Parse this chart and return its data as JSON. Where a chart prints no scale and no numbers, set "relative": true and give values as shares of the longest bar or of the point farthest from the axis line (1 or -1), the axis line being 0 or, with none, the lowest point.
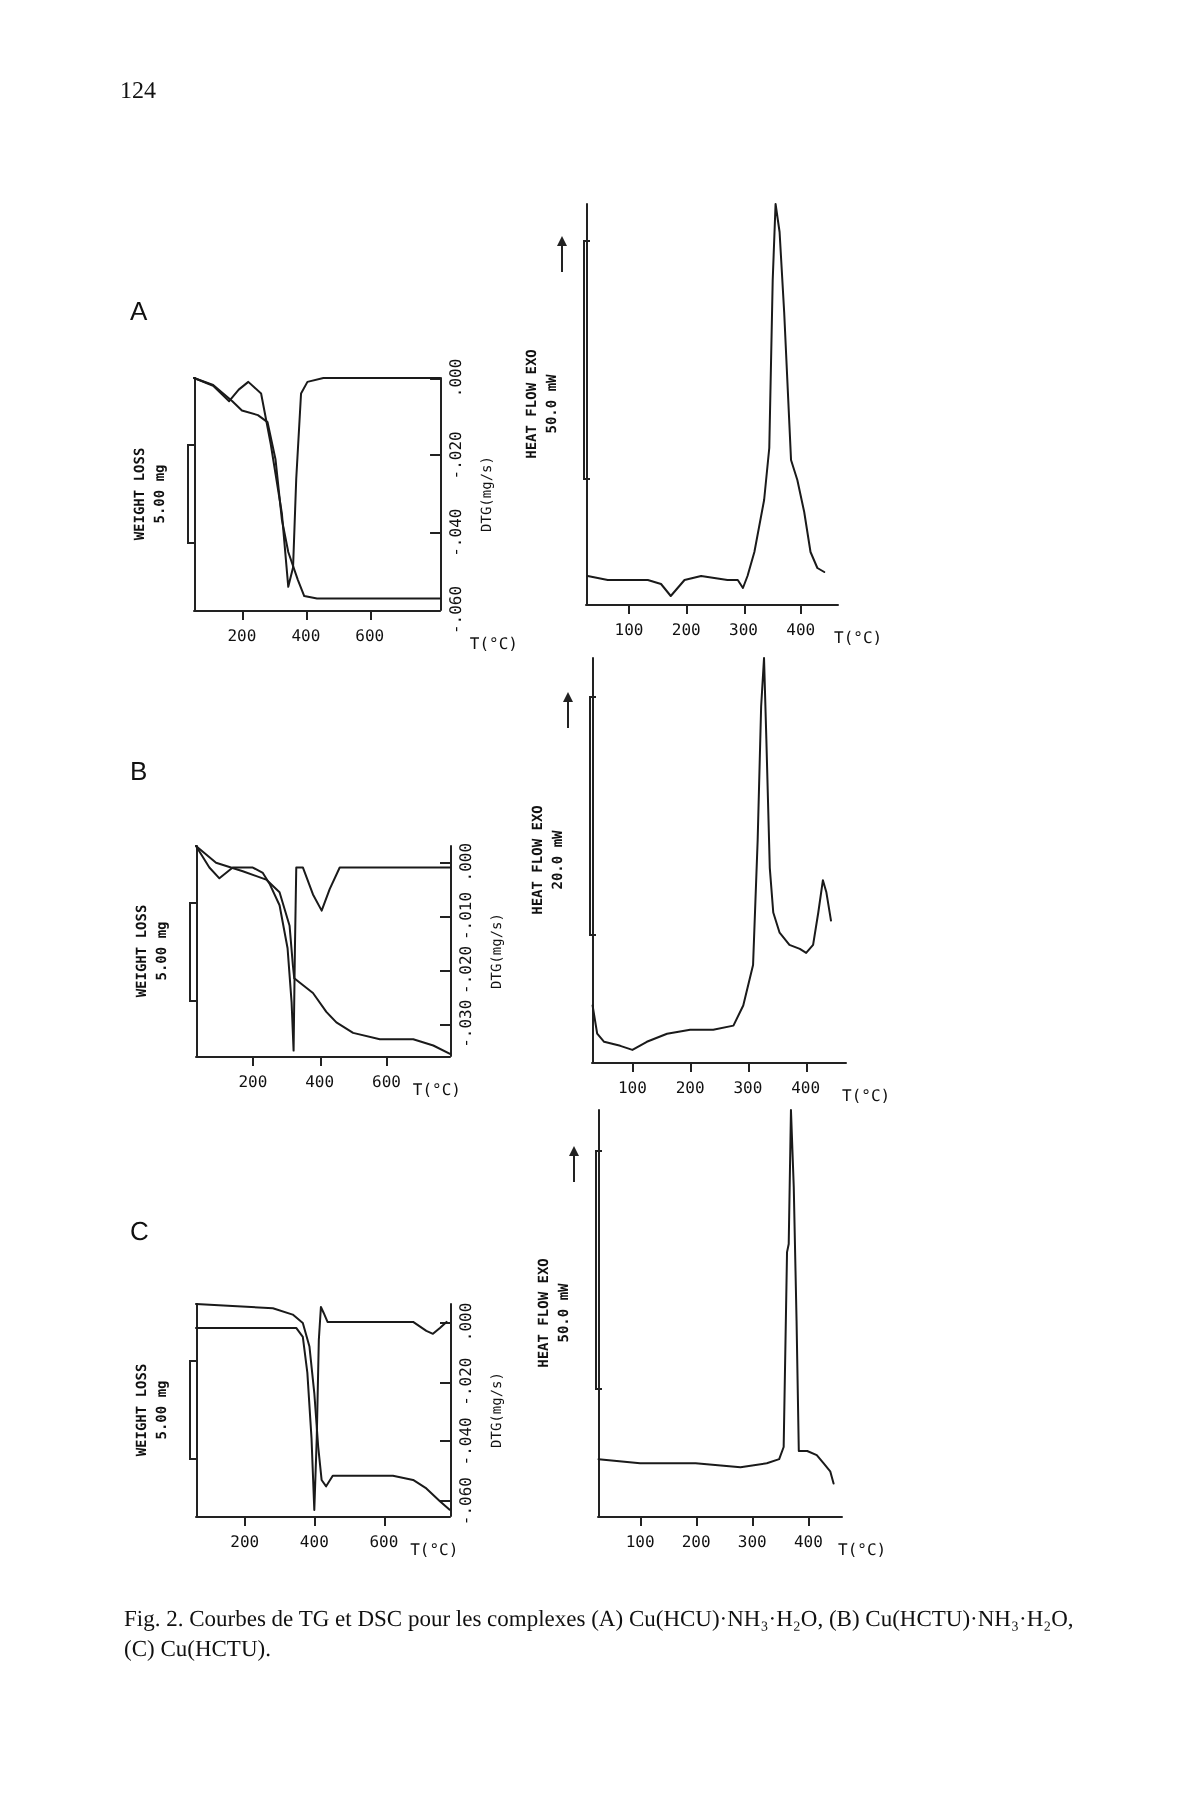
{
  "chart_data": [
    {
      "type": "line",
      "title": "A",
      "ylabel": "WEIGHT LOSS\n5.00 mg",
      "y2label": "DTG(mg/s)",
      "xlabel": "T(°C)",
      "relative": true,
      "marker": "none",
      "xlim": [
        50,
        820
      ],
      "xticks": [
        200,
        400,
        600
      ],
      "y2lim": [
        -0.06,
        0
      ],
      "y2ticks": [
        {
          "value": 0,
          "label": ".000"
        },
        {
          "value": -0.02,
          "label": "-.020"
        },
        {
          "value": -0.04,
          "label": "-.040"
        },
        {
          "value": -0.06,
          "label": "-.060"
        }
      ],
      "annotations": [
        "124"
      ],
      "series": [
        {
          "color": "#1a1a1a",
          "x": [
            50,
            110,
            170,
            200,
            250,
            280,
            305,
            325,
            345,
            375,
            395,
            435,
            820
          ],
          "values": [
            1,
            0.97,
            0.9,
            0.86,
            0.84,
            0.81,
            0.65,
            0.39,
            0.25,
            0.13,
            0.06,
            0.05,
            0.05
          ]
        },
        {
          "color": "#1a1a1a",
          "axis": "y2",
          "x": [
            50,
            110,
            160,
            190,
            220,
            260,
            290,
            325,
            345,
            360,
            370,
            385,
            405,
            455,
            820
          ],
          "values": [
            0,
            -0.002,
            -0.006,
            -0.003,
            -0.001,
            -0.004,
            -0.017,
            -0.035,
            -0.054,
            -0.049,
            -0.026,
            -0.004,
            -0.001,
            0,
            0
          ]
        }
      ]
    },
    {
      "type": "line",
      "ylabel": "HEAT FLOW EXO\n50.0 mW",
      "xlabel": "T(°C)",
      "relative": true,
      "marker": "none",
      "xlim": [
        25,
        465
      ],
      "xticks": [
        100,
        200,
        300,
        400
      ],
      "series": [
        {
          "color": "#1a1a1a",
          "x": [
            28,
            63,
            98,
            133,
            156,
            173,
            185,
            197,
            226,
            272,
            290,
            299,
            307,
            319,
            336,
            345,
            351,
            356,
            363,
            371,
            383,
            394,
            406,
            417,
            429,
            441
          ],
          "values": [
            0.07,
            0.06,
            0.06,
            0.06,
            0.05,
            0.02,
            0.04,
            0.06,
            0.07,
            0.06,
            0.06,
            0.04,
            0.07,
            0.13,
            0.26,
            0.39,
            0.81,
            1,
            0.93,
            0.73,
            0.36,
            0.31,
            0.23,
            0.13,
            0.09,
            0.08
          ]
        }
      ]
    },
    {
      "type": "line",
      "title": "B",
      "ylabel": "WEIGHT LOSS\n5.00 mg",
      "y2label": "DTG(mg/s)",
      "xlabel": "T(°C)",
      "relative": true,
      "marker": "none",
      "xlim": [
        30,
        790
      ],
      "xticks": [
        200,
        400,
        600
      ],
      "y2lim": [
        -0.036,
        0.003
      ],
      "y2ticks": [
        {
          "value": 0,
          "label": ".000"
        },
        {
          "value": -0.01,
          "label": "-.010"
        },
        {
          "value": -0.02,
          "label": "-.020"
        },
        {
          "value": -0.03,
          "label": "-.030"
        }
      ],
      "series": [
        {
          "color": "#1a1a1a",
          "x": [
            30,
            90,
            170,
            240,
            280,
            310,
            320,
            324,
            340,
            380,
            420,
            450,
            500,
            580,
            680,
            740,
            790
          ],
          "values": [
            1,
            0.92,
            0.88,
            0.84,
            0.78,
            0.62,
            0.43,
            0.37,
            0.35,
            0.3,
            0.21,
            0.16,
            0.11,
            0.08,
            0.08,
            0.05,
            0.01
          ]
        },
        {
          "color": "#1a1a1a",
          "axis": "y2",
          "x": [
            30,
            70,
            100,
            140,
            200,
            230,
            250,
            280,
            304,
            316,
            322,
            326,
            330,
            350,
            380,
            406,
            430,
            460,
            790
          ],
          "values": [
            0.003,
            -0.001,
            -0.003,
            -0.001,
            -0.001,
            -0.002,
            -0.004,
            -0.008,
            -0.016,
            -0.026,
            -0.035,
            -0.016,
            -0.001,
            -0.001,
            -0.006,
            -0.009,
            -0.005,
            -0.001,
            -0.001
          ]
        }
      ]
    },
    {
      "type": "line",
      "ylabel": "HEAT FLOW EXO\n20.0 mW",
      "xlabel": "T(°C)",
      "relative": true,
      "marker": "none",
      "xlim": [
        30,
        470
      ],
      "xticks": [
        100,
        200,
        300,
        400
      ],
      "series": [
        {
          "color": "#1a1a1a",
          "x": [
            31,
            39,
            51,
            79,
            100,
            125,
            160,
            200,
            240,
            275,
            292,
            309,
            317,
            323,
            328,
            332,
            338,
            344,
            355,
            372,
            390,
            401,
            413,
            422,
            430,
            436,
            444
          ],
          "values": [
            0.14,
            0.07,
            0.05,
            0.04,
            0.03,
            0.05,
            0.07,
            0.08,
            0.08,
            0.09,
            0.14,
            0.24,
            0.55,
            0.88,
            1,
            0.8,
            0.48,
            0.37,
            0.32,
            0.29,
            0.28,
            0.27,
            0.29,
            0.37,
            0.45,
            0.42,
            0.35
          ]
        }
      ]
    },
    {
      "type": "line",
      "title": "C",
      "ylabel": "WEIGHT LOSS\n5.00 mg",
      "y2label": "DTG(mg/s)",
      "xlabel": "T(°C)",
      "relative": true,
      "marker": "none",
      "xlim": [
        60,
        790
      ],
      "xticks": [
        200,
        400,
        600
      ],
      "y2lim": [
        -0.065,
        0.006
      ],
      "y2ticks": [
        {
          "value": 0,
          "label": ".000"
        },
        {
          "value": -0.02,
          "label": "-.020"
        },
        {
          "value": -0.04,
          "label": "-.040"
        },
        {
          "value": -0.06,
          "label": "-.060"
        }
      ],
      "series": [
        {
          "color": "#1a1a1a",
          "x": [
            60,
            165,
            281,
            338,
            367,
            386,
            400,
            411,
            421,
            434,
            453,
            549,
            626,
            684,
            722,
            761,
            789
          ],
          "values": [
            1,
            0.99,
            0.98,
            0.95,
            0.91,
            0.8,
            0.58,
            0.33,
            0.17,
            0.14,
            0.19,
            0.19,
            0.19,
            0.17,
            0.13,
            0.07,
            0.03
          ]
        },
        {
          "color": "#1a1a1a",
          "axis": "y2",
          "x": [
            60,
            261,
            348,
            367,
            380,
            392,
            400,
            407,
            413,
            419,
            427,
            438,
            511,
            684,
            722,
            741,
            761,
            780
          ],
          "values": [
            -0.002,
            -0.002,
            -0.002,
            -0.005,
            -0.017,
            -0.039,
            -0.063,
            -0.039,
            -0.006,
            0.005,
            0.003,
            0,
            0,
            0,
            -0.003,
            -0.004,
            -0.002,
            0
          ]
        }
      ]
    },
    {
      "type": "line",
      "ylabel": "HEAT FLOW EXO\n50.0 mW",
      "xlabel": "T(°C)",
      "relative": true,
      "marker": "none",
      "xlim": [
        25,
        460
      ],
      "xticks": [
        100,
        200,
        300,
        400
      ],
      "annotations": [
        "Fig. 2. Courbes de TG et DSC pour les complexes (A) Cu(HCU)·NH₃·H₂O, (B) Cu(HCTU)·NH₃·H₂O, (C) Cu(HCTU)."
      ],
      "series": [
        {
          "color": "#1a1a1a",
          "x": [
            26,
            100,
            199,
            279,
            326,
            348,
            356,
            362,
            365,
            369,
            374,
            379,
            383,
            398,
            415,
            427,
            439,
            445
          ],
          "values": [
            0.14,
            0.13,
            0.13,
            0.12,
            0.13,
            0.14,
            0.17,
            0.65,
            0.67,
            1,
            0.81,
            0.48,
            0.16,
            0.16,
            0.15,
            0.13,
            0.11,
            0.08
          ]
        }
      ]
    }
  ]
}
